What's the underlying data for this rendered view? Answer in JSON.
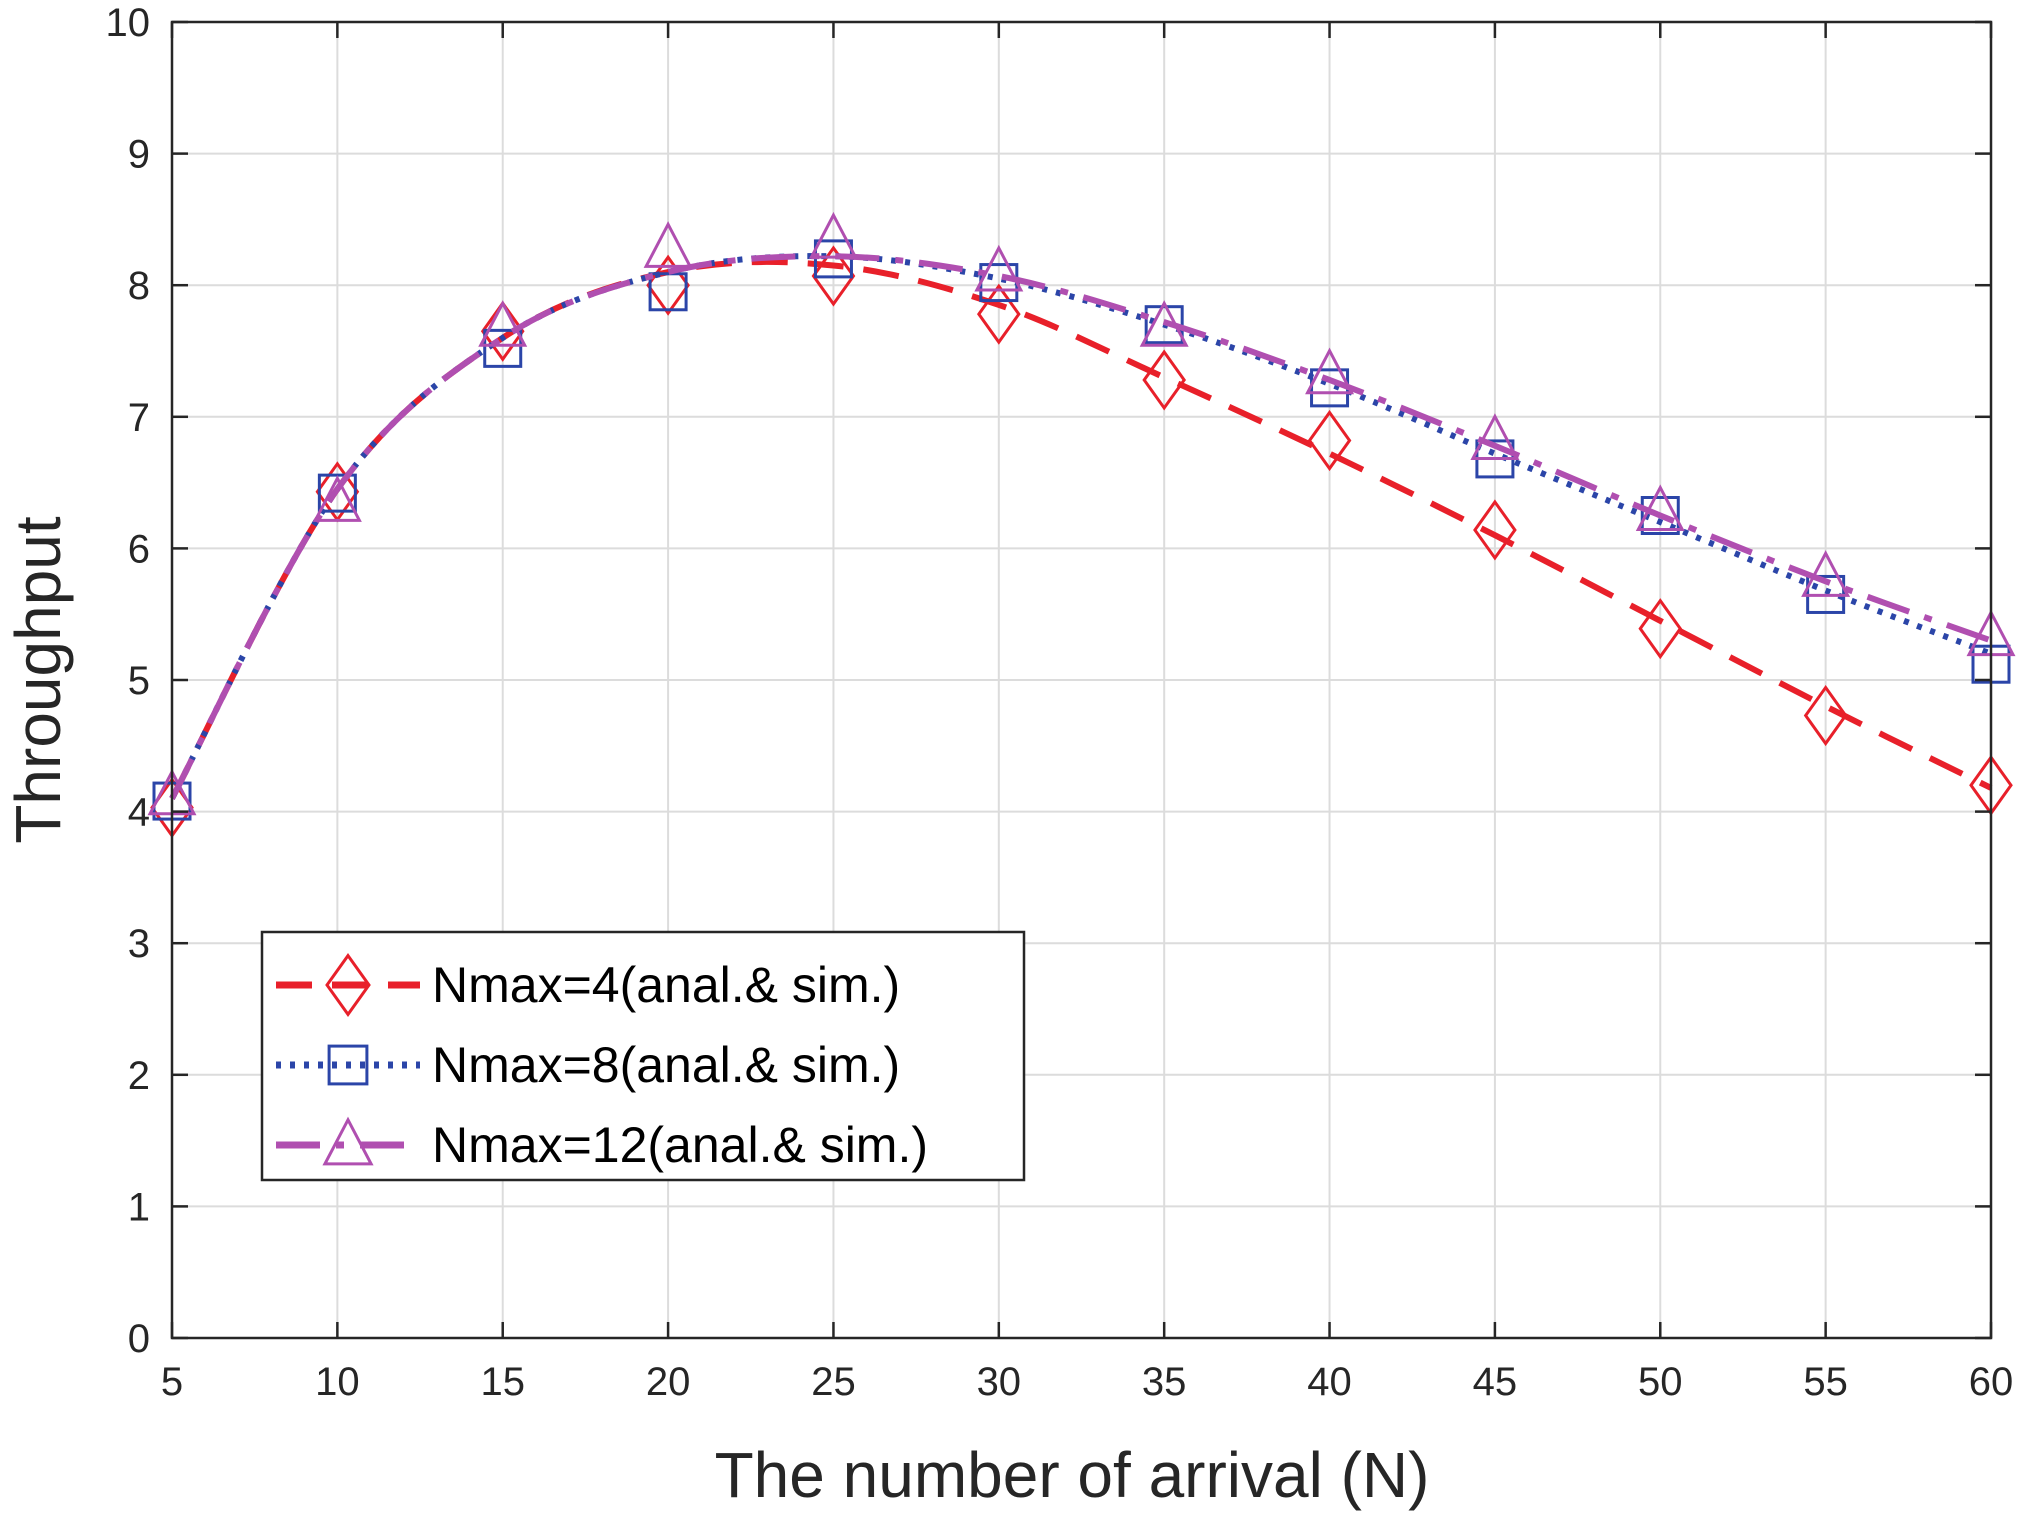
{
  "chart_data": {
    "type": "line",
    "title": "",
    "xlabel": "The number of arrival (N)",
    "ylabel": "Throughput",
    "xlim": [
      5,
      60
    ],
    "ylim": [
      0,
      10
    ],
    "grid": true,
    "x": [
      5,
      10,
      15,
      20,
      25,
      30,
      35,
      40,
      45,
      50,
      55,
      60
    ],
    "xticks": [
      "5",
      "10",
      "15",
      "20",
      "25",
      "30",
      "35",
      "40",
      "45",
      "50",
      "55",
      "60"
    ],
    "yticks": [
      "0",
      "1",
      "2",
      "3",
      "4",
      "5",
      "6",
      "7",
      "8",
      "9",
      "10"
    ],
    "legend_position": "bottom-left",
    "series": [
      {
        "name": "Nmax=4(anal.& sim.)",
        "color": "#e8202a",
        "style": "dashed",
        "marker": "diamond",
        "analytical": [
          4.1,
          6.45,
          7.6,
          8.1,
          8.15,
          7.85,
          7.3,
          6.72,
          6.1,
          5.45,
          4.8,
          4.18
        ],
        "simulation": [
          4.03,
          6.43,
          7.65,
          8.0,
          8.07,
          7.78,
          7.28,
          6.82,
          6.14,
          5.39,
          4.73,
          4.2
        ]
      },
      {
        "name": "Nmax=8(anal.& sim.)",
        "color": "#2b45a8",
        "style": "dotted",
        "marker": "square",
        "analytical": [
          4.1,
          6.45,
          7.6,
          8.1,
          8.22,
          8.05,
          7.7,
          7.25,
          6.72,
          6.2,
          5.68,
          5.2
        ],
        "simulation": [
          4.08,
          6.42,
          7.52,
          7.95,
          8.2,
          8.02,
          7.7,
          7.22,
          6.68,
          6.25,
          5.65,
          5.12
        ]
      },
      {
        "name": "Nmax=12(anal.& sim.)",
        "color": "#b04fb0",
        "style": "dashdot",
        "marker": "triangle",
        "analytical": [
          4.1,
          6.45,
          7.6,
          8.1,
          8.22,
          8.07,
          7.72,
          7.28,
          6.78,
          6.25,
          5.75,
          5.3
        ],
        "simulation": [
          4.12,
          6.35,
          7.68,
          8.28,
          8.35,
          8.1,
          7.68,
          7.32,
          6.82,
          6.28,
          5.78,
          5.33
        ]
      }
    ]
  }
}
